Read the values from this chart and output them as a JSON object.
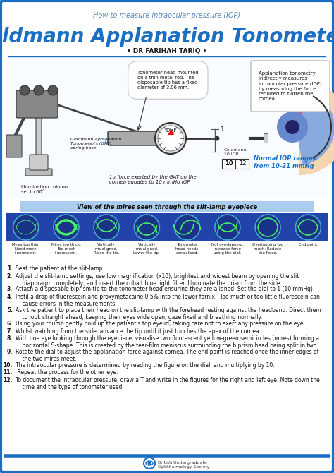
{
  "title_subtitle": "How to measure intraocular pressure (IOP)",
  "title_main": "Goldmann Applanation Tonometery",
  "title_author": "• DR FARIHAH TARIQ •",
  "bg_color": "#ffffff",
  "border_color": "#1a6fc4",
  "title_color": "#1a6fc4",
  "subtitle_color": "#5588bb",
  "text_color": "#1a1a1a",
  "mires_section_title": "View of the mires seen through the slit-lamp eyepiece",
  "mires_labels": [
    "Mires too thin.\nNeed more\nfluorescein.",
    "Mires too thick.\nToo much\nfluorescein.",
    "Vertically\nmalaligned.\nRaise the tip.",
    "Vertically\nmalaligned.\nLower the tip.",
    "Tonometer\nhead needs\ncentralised.",
    "Not overlapping.\nIncrease force\nusing the dial.",
    "Overlapping too\nmuch. Reduce\nthe force.",
    "End point"
  ],
  "steps": [
    "Seat the patient at the slit-lamp.",
    "Adjust the slit-lamp settings; use low magnification (x10), brightest and widest beam by opening the slit\n    diaphragm completely, and insert the cobalt blue light filter. Illuminate the prism from the side.",
    "Attach a disposable biprism tip to the tonometer head ensuring they are aligned. Set the dial to 1 (10 mmHg).",
    "Instil a drop of fluorescein and proxymetacaine 0.5% into the lower fornix.  Too much or too little fluorescein can\n    cause errors in the measurements.",
    "Ask the patient to place their head on the slit-lamp with the forehead resting against the headband. Direct them\n    to look straight ahead, keeping their eyes wide open, gaze fixed and breathing normally.",
    "Using your thumb gently hold up the patient's top eyelid, taking care not to exert any pressure on the eye.",
    "Whilst watching from the side, advance the tip until it just touches the apex of the cornea.",
    "With one eye looking through the eyepiece, visualise two fluorescent yellow-green semicircles (mires) forming a\n    horizontal S-shape. This is created by the tear-film meniscus surrounding the biprism head being split in two.",
    "Rotate the dial to adjust the applanation force against cornea. The end point is reached once the inner edges of\n    the two mires meet.",
    "The intraocular pressure is determined by reading the figure on the dial, and multiplying by 10.",
    " Repeat the process for the other eye.",
    "To document the intraocular pressure, draw a T and write in the figures for the right and left eye. Note down the\n    time and the type of tonometer used."
  ],
  "footer_org": "British Undergraduate\nOphthalmology Society",
  "mires_circle_bg": "#2255aa",
  "mires_wave_color": "#44ee66",
  "mires_title_bg": "#aaccee"
}
